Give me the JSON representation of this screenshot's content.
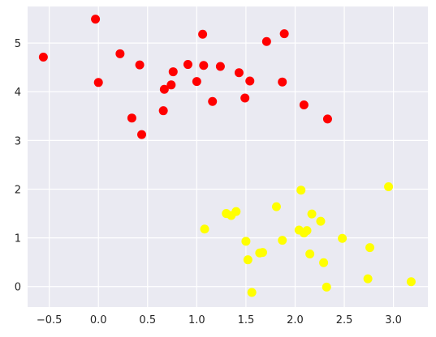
{
  "chart_data": {
    "type": "scatter",
    "title": "",
    "xlabel": "",
    "ylabel": "",
    "xlim": [
      -0.72,
      3.35
    ],
    "ylim": [
      -0.42,
      5.75
    ],
    "xticks": [
      -0.5,
      0.0,
      0.5,
      1.0,
      1.5,
      2.0,
      2.5,
      3.0
    ],
    "xtick_labels": [
      "−0.5",
      "0.0",
      "0.5",
      "1.0",
      "1.5",
      "2.0",
      "2.5",
      "3.0"
    ],
    "yticks": [
      0,
      1,
      2,
      3,
      4,
      5
    ],
    "ytick_labels": [
      "0",
      "1",
      "2",
      "3",
      "4",
      "5"
    ],
    "grid": true,
    "background": "#eaeaf2",
    "series": [
      {
        "color": "#ff0000",
        "points": [
          [
            -0.56,
            4.71
          ],
          [
            -0.03,
            5.49
          ],
          [
            0.0,
            4.19
          ],
          [
            0.22,
            4.78
          ],
          [
            0.34,
            3.46
          ],
          [
            0.42,
            4.55
          ],
          [
            0.44,
            3.12
          ],
          [
            0.66,
            3.61
          ],
          [
            0.67,
            4.05
          ],
          [
            0.74,
            4.14
          ],
          [
            0.76,
            4.41
          ],
          [
            0.91,
            4.56
          ],
          [
            1.0,
            4.21
          ],
          [
            1.06,
            5.18
          ],
          [
            1.07,
            4.54
          ],
          [
            1.16,
            3.8
          ],
          [
            1.24,
            4.52
          ],
          [
            1.43,
            4.39
          ],
          [
            1.49,
            3.87
          ],
          [
            1.54,
            4.22
          ],
          [
            1.71,
            5.03
          ],
          [
            1.87,
            4.2
          ],
          [
            1.89,
            5.19
          ],
          [
            2.09,
            3.73
          ],
          [
            2.33,
            3.44
          ]
        ]
      },
      {
        "color": "#ffff00",
        "points": [
          [
            1.08,
            1.18
          ],
          [
            1.3,
            1.5
          ],
          [
            1.35,
            1.46
          ],
          [
            1.4,
            1.54
          ],
          [
            1.5,
            0.93
          ],
          [
            1.52,
            0.55
          ],
          [
            1.56,
            -0.12
          ],
          [
            1.64,
            0.69
          ],
          [
            1.67,
            0.7
          ],
          [
            1.81,
            1.64
          ],
          [
            1.87,
            0.95
          ],
          [
            2.04,
            1.16
          ],
          [
            2.06,
            1.98
          ],
          [
            2.09,
            1.1
          ],
          [
            2.12,
            1.15
          ],
          [
            2.15,
            0.67
          ],
          [
            2.17,
            1.49
          ],
          [
            2.26,
            1.34
          ],
          [
            2.29,
            0.49
          ],
          [
            2.32,
            -0.01
          ],
          [
            2.48,
            0.99
          ],
          [
            2.74,
            0.16
          ],
          [
            2.76,
            0.8
          ],
          [
            2.95,
            2.05
          ],
          [
            3.18,
            0.1
          ]
        ]
      }
    ]
  }
}
